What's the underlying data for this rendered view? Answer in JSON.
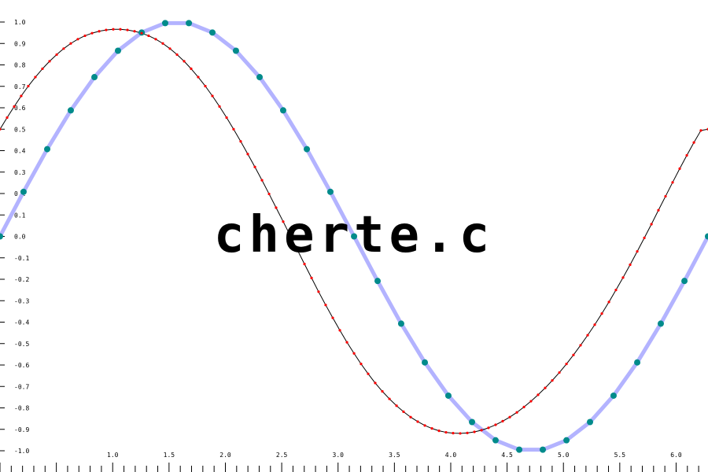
{
  "watermark": "cherte.c",
  "chart_data": {
    "type": "line",
    "title": "",
    "xlabel": "",
    "ylabel": "",
    "xlim": [
      0.0,
      6.283
    ],
    "ylim": [
      -1.0,
      1.0
    ],
    "grid": false,
    "legend": "none",
    "x_ticks_minor_step": 0.1,
    "x_tick_labels": [
      "1.0",
      "1.5",
      "2.0",
      "2.5",
      "3.0",
      "3.5",
      "4.0",
      "4.5",
      "5.0",
      "5.5",
      "6.0"
    ],
    "y_tick_labels": [
      "1.0",
      "0.9",
      "0.8",
      "0.7",
      "0.6",
      "0.5",
      "0.4",
      "0.3",
      "0.2",
      "0.1",
      "0.0",
      "-0.1",
      "-0.2",
      "-0.3",
      "-0.4",
      "-0.5",
      "-0.6",
      "-0.7",
      "-0.8",
      "-0.9",
      "-1.0"
    ],
    "series": [
      {
        "color": "#000000",
        "marker_color": "#ff0000",
        "line_width": 1,
        "x": [
          0.0,
          0.063,
          0.126,
          0.188,
          0.251,
          0.314,
          0.377,
          0.44,
          0.503,
          0.565,
          0.628,
          0.691,
          0.754,
          0.817,
          0.88,
          0.942,
          1.005,
          1.068,
          1.131,
          1.194,
          1.257,
          1.319,
          1.382,
          1.445,
          1.508,
          1.571,
          1.634,
          1.696,
          1.759,
          1.822,
          1.885,
          1.948,
          2.011,
          2.073,
          2.136,
          2.199,
          2.262,
          2.325,
          2.388,
          2.45,
          2.513,
          2.576,
          2.639,
          2.702,
          2.765,
          2.827,
          2.89,
          2.953,
          3.016,
          3.079,
          3.142,
          3.204,
          3.267,
          3.33,
          3.393,
          3.456,
          3.519,
          3.581,
          3.644,
          3.707,
          3.77,
          3.833,
          3.896,
          3.958,
          4.021,
          4.084,
          4.147,
          4.21,
          4.273,
          4.335,
          4.398,
          4.461,
          4.524,
          4.587,
          4.65,
          4.712,
          4.775,
          4.838,
          4.901,
          4.964,
          5.027,
          5.089,
          5.152,
          5.215,
          5.278,
          5.341,
          5.404,
          5.466,
          5.529,
          5.592,
          5.655,
          5.718,
          5.781,
          5.843,
          5.906,
          5.969,
          6.032,
          6.095,
          6.158,
          6.22,
          6.283
        ],
        "y": [
          0.5,
          0.554,
          0.606,
          0.655,
          0.701,
          0.743,
          0.782,
          0.817,
          0.848,
          0.876,
          0.9,
          0.92,
          0.936,
          0.948,
          0.957,
          0.963,
          0.966,
          0.966,
          0.963,
          0.957,
          0.948,
          0.936,
          0.92,
          0.9,
          0.876,
          0.848,
          0.817,
          0.782,
          0.743,
          0.701,
          0.655,
          0.606,
          0.554,
          0.5,
          0.443,
          0.384,
          0.324,
          0.262,
          0.198,
          0.134,
          0.069,
          0.003,
          -0.063,
          -0.129,
          -0.194,
          -0.258,
          -0.32,
          -0.38,
          -0.438,
          -0.494,
          -0.546,
          -0.595,
          -0.641,
          -0.684,
          -0.723,
          -0.758,
          -0.79,
          -0.818,
          -0.843,
          -0.864,
          -0.882,
          -0.896,
          -0.907,
          -0.914,
          -0.918,
          -0.919,
          -0.917,
          -0.912,
          -0.904,
          -0.893,
          -0.879,
          -0.862,
          -0.843,
          -0.821,
          -0.796,
          -0.769,
          -0.739,
          -0.707,
          -0.672,
          -0.635,
          -0.595,
          -0.553,
          -0.508,
          -0.461,
          -0.412,
          -0.36,
          -0.306,
          -0.25,
          -0.192,
          -0.132,
          -0.07,
          -0.007,
          0.057,
          0.122,
          0.187,
          0.252,
          0.316,
          0.378,
          0.438,
          0.494,
          0.5
        ]
      },
      {
        "color": "#b3b3ff",
        "marker_color": "#008b8b",
        "line_width": 5,
        "x": [
          0.0,
          0.209,
          0.419,
          0.628,
          0.838,
          1.047,
          1.257,
          1.466,
          1.676,
          1.885,
          2.094,
          2.304,
          2.513,
          2.723,
          2.932,
          3.142,
          3.351,
          3.56,
          3.77,
          3.979,
          4.189,
          4.398,
          4.608,
          4.817,
          5.027,
          5.236,
          5.445,
          5.655,
          5.864,
          6.074,
          6.283
        ],
        "y": [
          0.0,
          0.208,
          0.407,
          0.588,
          0.743,
          0.866,
          0.951,
          0.995,
          0.995,
          0.951,
          0.866,
          0.743,
          0.588,
          0.407,
          0.208,
          0.0,
          -0.208,
          -0.407,
          -0.588,
          -0.743,
          -0.866,
          -0.951,
          -0.995,
          -0.995,
          -0.951,
          -0.866,
          -0.743,
          -0.588,
          -0.407,
          -0.208,
          0.0
        ]
      }
    ]
  }
}
